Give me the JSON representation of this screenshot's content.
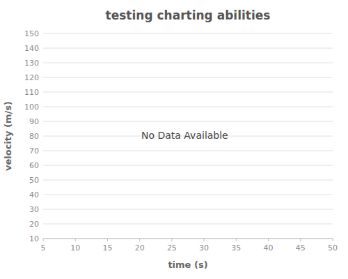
{
  "chart_data": {
    "type": "line",
    "title": "testing charting abilities",
    "x_label": "time (s)",
    "y_label": "velocity (m/s)",
    "xlim": [
      5,
      50
    ],
    "ylim": [
      10,
      150
    ],
    "xticks": [
      5,
      10,
      15,
      20,
      25,
      30,
      35,
      40,
      45,
      50
    ],
    "yticks": [
      10,
      20,
      30,
      40,
      50,
      60,
      70,
      80,
      90,
      100,
      110,
      120,
      130,
      140,
      150
    ],
    "grid": "y",
    "series": [],
    "annotations": [
      {
        "text": "No Data Available",
        "x": 27,
        "y": 80
      }
    ]
  }
}
